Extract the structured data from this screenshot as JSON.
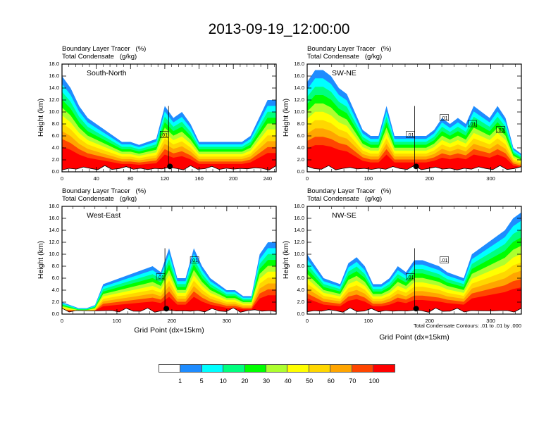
{
  "title": "2013-09-19_12:00:00",
  "colors": [
    "#ffffff",
    "#1e8cff",
    "#00ffff",
    "#00ff7f",
    "#00ff00",
    "#adff2f",
    "#ffff00",
    "#ffd700",
    "#ffa500",
    "#ff4500",
    "#ff0000"
  ],
  "colorbar": {
    "labels": [
      "1",
      "5",
      "10",
      "20",
      "30",
      "40",
      "50",
      "60",
      "70",
      "100"
    ]
  },
  "chart_data": [
    {
      "type": "heatmap",
      "panel": "South-North",
      "title_lines": [
        "Boundary Layer Tracer   (%)",
        "Total Condensate   (g/kg)"
      ],
      "ylabel": "Height (km)",
      "xlabel": "",
      "ylim": [
        0,
        18
      ],
      "xlim": [
        0,
        250
      ],
      "yticks": [
        "0.0",
        "2.0",
        "4.0",
        "6.0",
        "8.0",
        "10.0",
        "12.0",
        "14.0",
        "16.0",
        "18.0"
      ],
      "xticks": [
        0,
        40,
        80,
        120,
        160,
        200,
        240
      ],
      "contour_labels": [
        ".01"
      ],
      "marker_x": 126,
      "tracer_top_km": [
        16,
        14,
        11,
        9,
        8,
        7,
        6,
        5,
        5,
        4.5,
        5,
        5.5,
        11,
        9,
        10,
        8,
        5,
        5,
        5,
        5,
        5,
        5,
        6,
        9,
        12,
        12
      ]
    },
    {
      "type": "heatmap",
      "panel": "SW-NE",
      "title_lines": [
        "Boundary Layer Tracer   (%)",
        "Total Condensate   (g/kg)"
      ],
      "ylabel": "Height (km)",
      "xlabel": "",
      "ylim": [
        0,
        18
      ],
      "xlim": [
        0,
        350
      ],
      "yticks": [
        "0.0",
        "2.0",
        "4.0",
        "6.0",
        "8.0",
        "10.0",
        "12.0",
        "14.0",
        "16.0",
        "18.0"
      ],
      "xticks": [
        0,
        100,
        200,
        300
      ],
      "contour_labels": [
        ".01",
        ".01",
        ".01",
        ".03"
      ],
      "marker_x": 178,
      "tracer_top_km": [
        15,
        17,
        17,
        16,
        14,
        13,
        10,
        7,
        6,
        6,
        11,
        6,
        6,
        6,
        6,
        6,
        7,
        9,
        8,
        9,
        8,
        11,
        10,
        9,
        11,
        9,
        4,
        3
      ]
    },
    {
      "type": "heatmap",
      "panel": "West-East",
      "title_lines": [
        "Boundary Layer Tracer   (%)",
        "Total Condensate   (g/kg)"
      ],
      "ylabel": "Height (km)",
      "xlabel": "Grid Point (dx=15km)",
      "ylim": [
        0,
        18
      ],
      "xlim": [
        0,
        390
      ],
      "yticks": [
        "0.0",
        "2.0",
        "4.0",
        "6.0",
        "8.0",
        "10.0",
        "12.0",
        "14.0",
        "16.0",
        "18.0"
      ],
      "xticks": [
        0,
        100,
        200,
        300
      ],
      "contour_labels": [
        ".01",
        ".01"
      ],
      "marker_x": 190,
      "tracer_top_km": [
        2,
        1.5,
        1,
        1,
        1.5,
        5,
        5.5,
        6,
        6.5,
        7,
        7.5,
        8,
        7,
        11,
        6,
        6,
        11,
        8,
        6,
        5,
        4,
        4,
        3,
        3,
        10,
        12,
        12
      ]
    },
    {
      "type": "heatmap",
      "panel": "NW-SE",
      "title_lines": [
        "Boundary Layer Tracer   (%)",
        "Total Condensate   (g/kg)"
      ],
      "ylabel": "Height (km)",
      "xlabel": "Grid Point (dx=15km)",
      "ylim": [
        0,
        18
      ],
      "xlim": [
        0,
        350
      ],
      "yticks": [
        "0.0",
        "2.0",
        "4.0",
        "6.0",
        "8.0",
        "10.0",
        "12.0",
        "14.0",
        "16.0",
        "18.0"
      ],
      "xticks": [
        0,
        100,
        200,
        300
      ],
      "contour_labels": [
        ".01",
        ".01"
      ],
      "contour_note": "Total Condensate Contours: .01 to .01 by .000",
      "marker_x": 178,
      "tracer_top_km": [
        10,
        8,
        6,
        5.5,
        5,
        8.5,
        9.5,
        8,
        5,
        5,
        6,
        8,
        7,
        9,
        9,
        8.5,
        8,
        7,
        6.5,
        6,
        10,
        11,
        12,
        13,
        14,
        16,
        17
      ]
    }
  ]
}
